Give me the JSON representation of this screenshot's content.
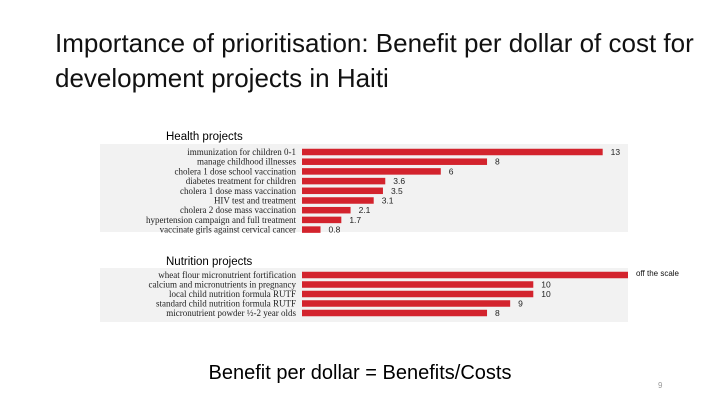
{
  "slide": {
    "title": "Importance of prioritisation: Benefit per dollar of cost for development projects in Haiti",
    "formula": "Benefit per dollar = Benefits/Costs",
    "page_number": "9",
    "annotation": "off the scale"
  },
  "colors": {
    "bar": "#d3232d",
    "panel_background": "#f2f2f2",
    "text": "#222222"
  },
  "chart_data": [
    {
      "type": "bar",
      "orientation": "horizontal",
      "title": "Health projects",
      "categories": [
        "immunization for children 0-1",
        "manage childhood illnesses",
        "cholera 1 dose school vaccination",
        "diabetes treatment for children",
        "cholera 1 dose mass vaccination",
        "HIV test and treatment",
        "cholera 2 dose mass vaccination",
        "hypertension campaign and full treatment",
        "vaccinate girls against cervical cancer"
      ],
      "values": [
        13,
        8,
        6,
        3.6,
        3.5,
        3.1,
        2.1,
        1.7,
        0.8
      ],
      "value_labels": [
        "13",
        "8",
        "6",
        "3.6",
        "3.5",
        "3.1",
        "2.1",
        "1.7",
        "0.8"
      ],
      "xlim": [
        0,
        13.1
      ],
      "grid": false
    },
    {
      "type": "bar",
      "orientation": "horizontal",
      "title": "Nutrition projects",
      "categories": [
        "wheat flour micronutrient fortification",
        "calcium and micronutrients in pregnancy",
        "local child nutrition formula RUTF",
        "standard child nutrition formula RUTF",
        "micronutrient powder ½-2 year olds"
      ],
      "values": [
        null,
        10,
        10,
        9,
        8
      ],
      "value_labels": [
        "",
        "10",
        "10",
        "9",
        "8"
      ],
      "off_scale": [
        true,
        false,
        false,
        false,
        false
      ],
      "xlim": [
        0,
        13.1
      ],
      "grid": false
    }
  ]
}
